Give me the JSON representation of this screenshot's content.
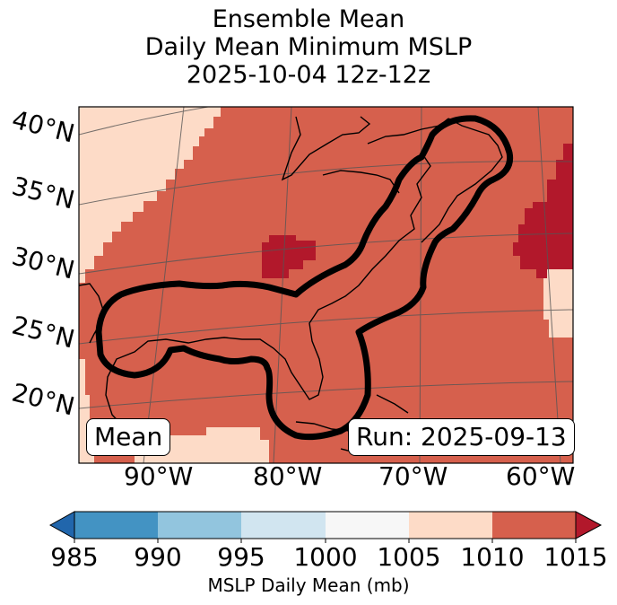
{
  "title": {
    "line1": "Ensemble Mean",
    "line2": "Daily Mean Minimum MSLP",
    "line3": "2025-10-04 12z-12z"
  },
  "map": {
    "lat_labels": [
      "40°N",
      "35°N",
      "30°N",
      "25°N",
      "20°N"
    ],
    "lon_labels": [
      "90°W",
      "80°W",
      "70°W",
      "60°W"
    ],
    "mean_badge": "Mean",
    "run_badge": "Run: 2025-09-13",
    "region": "Gulf of Mexico and US East Coast",
    "contour": "thick black outline around Gulf coast and US Eastern seaboard",
    "fill_colors": {
      "band_1005_1010": "#fddbc7",
      "band_1010_1015": "#d6604d",
      "above_1015": "#b2182b"
    }
  },
  "colorbar": {
    "ticks": [
      "985",
      "990",
      "995",
      "1000",
      "1005",
      "1010",
      "1015"
    ],
    "label": "MSLP Daily Mean (mb)",
    "bands": [
      {
        "range": "985-990",
        "color": "#4393c3"
      },
      {
        "range": "990-995",
        "color": "#92c5de"
      },
      {
        "range": "995-1000",
        "color": "#d1e5f0"
      },
      {
        "range": "1000-1005",
        "color": "#f7f7f7"
      },
      {
        "range": "1005-1010",
        "color": "#fddbc7"
      },
      {
        "range": "1010-1015",
        "color": "#d6604d"
      }
    ],
    "under_color": "#2166ac",
    "over_color": "#b2182b"
  }
}
